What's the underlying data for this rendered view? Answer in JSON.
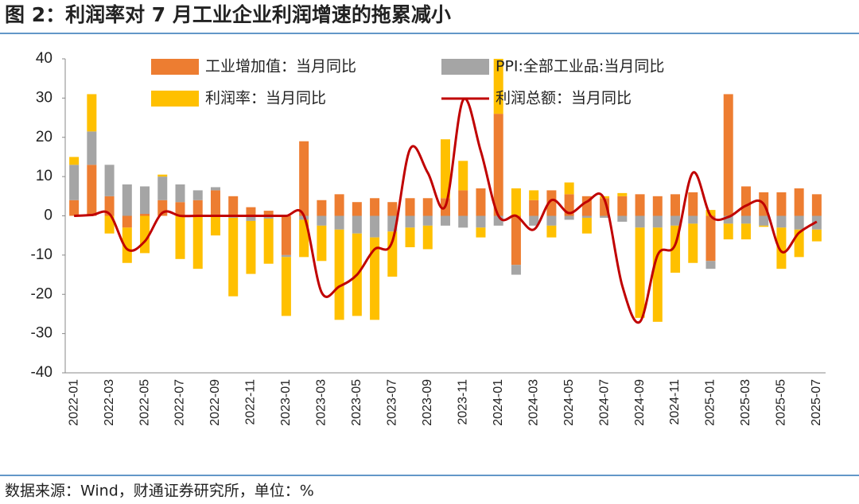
{
  "title": "图 2：利润率对 7 月工业企业利润增速的拖累减小",
  "source": "数据来源：Wind，财通证券研究所，单位：%",
  "chart_data": {
    "type": "stacked-bar-line",
    "categories": [
      "2022-01",
      null,
      "2022-03",
      null,
      "2022-05",
      null,
      "2022-07",
      null,
      "2022-09",
      null,
      "2022-11",
      null,
      "2023-01",
      null,
      "2023-03",
      null,
      "2023-05",
      null,
      "2023-07",
      null,
      "2023-09",
      null,
      "2023-11",
      null,
      "2024-01",
      null,
      "2024-03",
      null,
      "2024-05",
      null,
      "2024-07",
      null,
      "2024-09",
      null,
      "2024-11",
      null,
      "2025-01",
      null,
      "2025-03",
      null,
      "2025-05",
      null,
      "2025-07"
    ],
    "series": [
      {
        "name": "工业增加值：当月同比",
        "color": "#ED7D31",
        "kind": "bar",
        "values": [
          4,
          13,
          5,
          -3,
          0.5,
          4,
          3.5,
          4,
          6.5,
          5,
          2.2,
          1.3,
          -10,
          19,
          4,
          5.5,
          3.5,
          4.5,
          3.5,
          4.5,
          4.5,
          4.5,
          6.5,
          7,
          26,
          -12.5,
          4,
          6.5,
          5.5,
          5,
          4.5,
          5,
          5.5,
          5,
          5.5,
          6,
          -11.5,
          31,
          7.5,
          6,
          6,
          7,
          5.5
        ]
      },
      {
        "name": "PPI:全部工业品:当月同比",
        "color": "#A5A5A5",
        "kind": "bar",
        "values": [
          9,
          8.5,
          8,
          8,
          7,
          6,
          4.5,
          2.5,
          0.8,
          -0.5,
          -1.3,
          -0.7,
          -0.5,
          -1,
          -2.5,
          -3.5,
          -4.5,
          -5.5,
          -4,
          -3,
          -2.5,
          -2.5,
          -3,
          -3,
          -2.5,
          -2.5,
          -2.5,
          -2.5,
          -1,
          -0.5,
          -0.5,
          -1.5,
          -3,
          -3,
          -2.5,
          -2,
          -2,
          -2,
          -2,
          -2.5,
          -3,
          -3.5,
          -3.5
        ]
      },
      {
        "name": "利润率：当月同比",
        "color": "#FFC000",
        "kind": "bar",
        "values": [
          2,
          9.5,
          -4.5,
          -9,
          -9.5,
          0.5,
          -11,
          -13.5,
          -5,
          -20,
          -13.5,
          -11.5,
          -15,
          -9.5,
          -9,
          -23,
          -21,
          -21,
          -11.5,
          -5,
          -6,
          15,
          7.5,
          -2.5,
          14,
          7,
          2.5,
          -3,
          3,
          -4,
          0.5,
          0.8,
          -23,
          -24,
          -12,
          -10,
          1.5,
          -4,
          -4,
          -0.3,
          -10.5,
          -7,
          -3
        ]
      },
      {
        "name": "利润总额：当月同比",
        "color": "#C00000",
        "kind": "line",
        "values": [
          0,
          0.2,
          0.5,
          -8.5,
          -6.5,
          0.8,
          0,
          0,
          0,
          0,
          0,
          0,
          0,
          0,
          -19.5,
          -18,
          -15,
          -8.5,
          -6.5,
          17,
          11,
          2.5,
          29.5,
          16.5,
          0,
          0,
          -3.5,
          4,
          0.7,
          3.6,
          4.1,
          -17.8,
          -27,
          -10,
          -7.3,
          11,
          0,
          -0.3,
          2.6,
          3,
          -9.1,
          -4.3,
          -1.5
        ]
      }
    ],
    "ylim": [
      -40,
      40
    ],
    "yticks": [
      40,
      30,
      20,
      10,
      0,
      -10,
      -20,
      -30,
      -40
    ]
  }
}
